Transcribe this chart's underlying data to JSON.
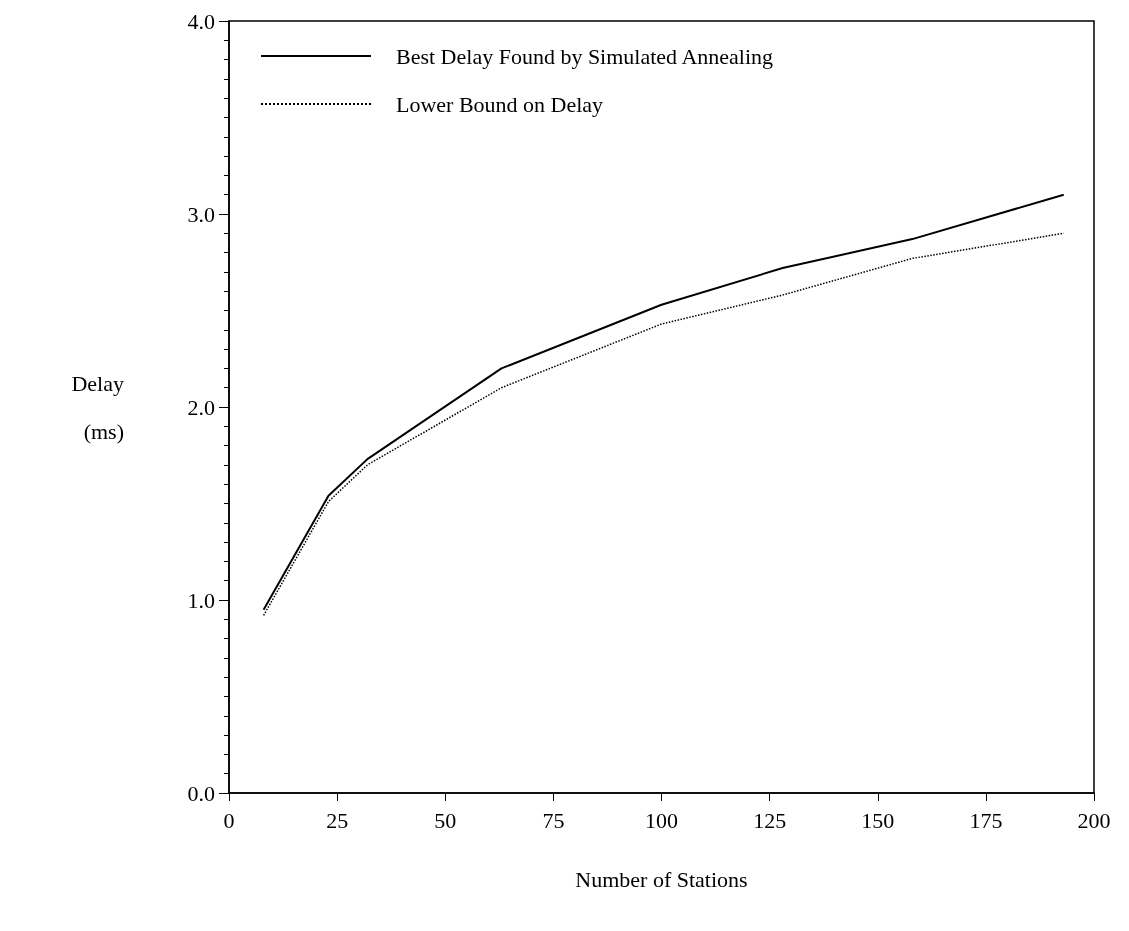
{
  "chart_data": {
    "type": "line",
    "xlabel": "Number of Stations",
    "ylabel": "Delay\n\n(ms)",
    "x": [
      8,
      23,
      32,
      63,
      100,
      128,
      158,
      193
    ],
    "series": [
      {
        "name": "Best Delay Found by Simulated Annealing",
        "color": "#000000",
        "line_style": "solid",
        "values": [
          0.95,
          1.54,
          1.73,
          2.2,
          2.53,
          2.72,
          2.87,
          3.1
        ]
      },
      {
        "name": "Lower Bound on Delay",
        "color": "#000000",
        "line_style": "dotted",
        "values": [
          0.92,
          1.51,
          1.7,
          2.1,
          2.43,
          2.58,
          2.77,
          2.9
        ]
      }
    ],
    "xlim": [
      0,
      200
    ],
    "xticks": [
      0,
      25,
      50,
      75,
      100,
      125,
      150,
      175,
      200
    ],
    "ylim": [
      0,
      4
    ],
    "yticks": [
      {
        "value": 0,
        "label": "0.0"
      },
      {
        "value": 1,
        "label": "1.0"
      },
      {
        "value": 2,
        "label": "2.0"
      },
      {
        "value": 3,
        "label": "3.0"
      },
      {
        "value": 4,
        "label": "4.0"
      }
    ],
    "grid": false,
    "legend": "top left",
    "marker": "none"
  }
}
